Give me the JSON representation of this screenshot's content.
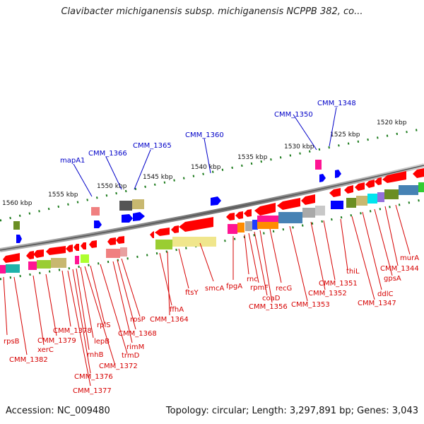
{
  "title": "Clavibacter michiganensis subsp. michiganensis NCPPB 382, co...",
  "footer": {
    "accession": "Accession: NC_009480",
    "summary": "Topology: circular; Length: 3,297,891 bp; Genes: 3,043"
  },
  "scale": [
    "1560 kbp",
    "1555 kbp",
    "1550 kbp",
    "1545 kbp",
    "1540 kbp",
    "1535 kbp",
    "1530 kbp",
    "1525 kbp",
    "1520 kbp"
  ],
  "forward_labels": [
    "mapA1",
    "CMM_1366",
    "CMM_1365",
    "CMM_1360",
    "CMM_1350",
    "CMM_1348"
  ],
  "reverse_labels": [
    "rpsB",
    "CMM_1382",
    "xerC",
    "CMM_1379",
    "CMM_1378",
    "CMM_1377",
    "CMM_1376",
    "rnhB",
    "lepB",
    "CMM_1372",
    "rplS",
    "trmD",
    "rimM",
    "CMM_1368",
    "rpsP",
    "ffhA",
    "CMM_1364",
    "ftsY",
    "smcA",
    "fpgA",
    "rnc",
    "rpmF",
    "coaD",
    "CMM_1356",
    "recG",
    "CMM_1353",
    "CMM_1352",
    "CMM_1351",
    "thiL",
    "CMM_1347",
    "ddlC",
    "gpsA",
    "CMM_1344",
    "murA"
  ],
  "colors": {
    "gene": "#ff0000",
    "forward_gene": "#0000ff",
    "backbone": "#808080",
    "ticks": "#1a7a1a",
    "label_red": "#d60000",
    "label_blue": "#0000c8"
  }
}
